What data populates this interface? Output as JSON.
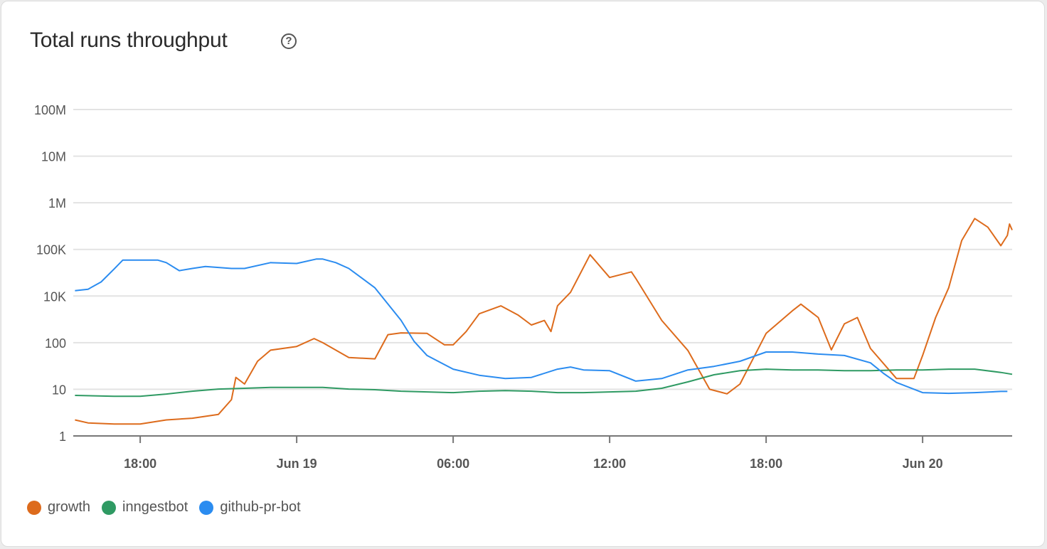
{
  "header": {
    "title": "Total runs throughput",
    "help_icon": "question-circle-icon"
  },
  "chart_data": {
    "type": "line",
    "title": "Total runs throughput",
    "xlabel": "",
    "ylabel": "",
    "y_scale": "log",
    "y_ticks": [
      {
        "value": 1,
        "label": "1"
      },
      {
        "value": 10,
        "label": "10"
      },
      {
        "value": 100,
        "label": "100"
      },
      {
        "value": 10000,
        "label": "10K"
      },
      {
        "value": 100000,
        "label": "100K"
      },
      {
        "value": 1000000,
        "label": "1M"
      },
      {
        "value": 10000000,
        "label": "10M"
      },
      {
        "value": 100000000,
        "label": "100M"
      }
    ],
    "x_range": [
      "Jun 18 15:26",
      "Jun 20 03:26"
    ],
    "x_ticks": [
      {
        "value": "Jun 18 18:00",
        "label": "18:00"
      },
      {
        "value": "Jun 19 00:00",
        "label": "Jun 19"
      },
      {
        "value": "Jun 19 06:00",
        "label": "06:00"
      },
      {
        "value": "Jun 19 12:00",
        "label": "12:00"
      },
      {
        "value": "Jun 19 18:00",
        "label": "18:00"
      },
      {
        "value": "Jun 20 00:00",
        "label": "Jun 20"
      }
    ],
    "grid": true,
    "legend_position": "bottom-left",
    "series": [
      {
        "name": "growth",
        "color": "#dd6b1c",
        "points": [
          [
            "Jun 18 15:30",
            2.2
          ],
          [
            "Jun 18 16:00",
            1.9
          ],
          [
            "Jun 18 17:00",
            1.8
          ],
          [
            "Jun 18 18:00",
            1.8
          ],
          [
            "Jun 18 19:00",
            2.2
          ],
          [
            "Jun 18 20:00",
            2.4
          ],
          [
            "Jun 18 21:00",
            2.9
          ],
          [
            "Jun 18 21:30",
            6
          ],
          [
            "Jun 18 21:40",
            18
          ],
          [
            "Jun 18 22:00",
            13
          ],
          [
            "Jun 18 22:30",
            40
          ],
          [
            "Jun 18 23:00",
            69
          ],
          [
            "Jun 19 00:00",
            83
          ],
          [
            "Jun 19 00:40",
            150
          ],
          [
            "Jun 19 01:00",
            100
          ],
          [
            "Jun 19 02:00",
            48
          ],
          [
            "Jun 19 03:00",
            45
          ],
          [
            "Jun 19 03:30",
            220
          ],
          [
            "Jun 19 04:00",
            263
          ],
          [
            "Jun 19 05:00",
            250
          ],
          [
            "Jun 19 05:40",
            90
          ],
          [
            "Jun 19 06:00",
            90
          ],
          [
            "Jun 19 06:30",
            300
          ],
          [
            "Jun 19 07:00",
            1740
          ],
          [
            "Jun 19 07:50",
            3800
          ],
          [
            "Jun 19 08:30",
            1500
          ],
          [
            "Jun 19 09:00",
            575
          ],
          [
            "Jun 19 09:30",
            900
          ],
          [
            "Jun 19 09:45",
            300
          ],
          [
            "Jun 19 10:00",
            3800
          ],
          [
            "Jun 19 10:30",
            12000
          ],
          [
            "Jun 19 11:15",
            77000
          ],
          [
            "Jun 19 12:00",
            25000
          ],
          [
            "Jun 19 12:50",
            33000
          ],
          [
            "Jun 19 13:00",
            24000
          ],
          [
            "Jun 19 14:00",
            900
          ],
          [
            "Jun 19 15:00",
            68
          ],
          [
            "Jun 19 15:50",
            10
          ],
          [
            "Jun 19 16:30",
            8
          ],
          [
            "Jun 19 17:00",
            13
          ],
          [
            "Jun 19 18:00",
            250
          ],
          [
            "Jun 19 19:00",
            2300
          ],
          [
            "Jun 19 19:20",
            4500
          ],
          [
            "Jun 19 20:00",
            1200
          ],
          [
            "Jun 19 20:30",
            70
          ],
          [
            "Jun 19 21:00",
            640
          ],
          [
            "Jun 19 21:30",
            1200
          ],
          [
            "Jun 19 22:00",
            75
          ],
          [
            "Jun 19 23:00",
            17
          ],
          [
            "Jun 19 23:40",
            17
          ],
          [
            "Jun 20 00:00",
            53
          ],
          [
            "Jun 20 00:30",
            1200
          ],
          [
            "Jun 20 01:00",
            15000
          ],
          [
            "Jun 20 01:30",
            155000
          ],
          [
            "Jun 20 02:00",
            460000
          ],
          [
            "Jun 20 02:30",
            300000
          ],
          [
            "Jun 20 03:00",
            120000
          ],
          [
            "Jun 20 03:15",
            200000
          ],
          [
            "Jun 20 03:20",
            350000
          ],
          [
            "Jun 20 03:26",
            260000
          ]
        ]
      },
      {
        "name": "inngestbot",
        "color": "#2f9a63",
        "points": [
          [
            "Jun 18 15:30",
            7.4
          ],
          [
            "Jun 18 17:00",
            7.1
          ],
          [
            "Jun 18 18:00",
            7.1
          ],
          [
            "Jun 18 19:00",
            7.9
          ],
          [
            "Jun 18 20:00",
            9.1
          ],
          [
            "Jun 18 21:00",
            10.1
          ],
          [
            "Jun 18 22:00",
            10.5
          ],
          [
            "Jun 18 23:00",
            11
          ],
          [
            "Jun 19 00:00",
            11
          ],
          [
            "Jun 19 01:00",
            11
          ],
          [
            "Jun 19 02:00",
            10.1
          ],
          [
            "Jun 19 03:00",
            9.8
          ],
          [
            "Jun 19 04:00",
            9.1
          ],
          [
            "Jun 19 05:00",
            8.8
          ],
          [
            "Jun 19 06:00",
            8.5
          ],
          [
            "Jun 19 07:00",
            9.1
          ],
          [
            "Jun 19 08:00",
            9.4
          ],
          [
            "Jun 19 09:00",
            9.1
          ],
          [
            "Jun 19 10:00",
            8.5
          ],
          [
            "Jun 19 11:00",
            8.5
          ],
          [
            "Jun 19 12:00",
            8.8
          ],
          [
            "Jun 19 13:00",
            9.1
          ],
          [
            "Jun 19 14:00",
            10.5
          ],
          [
            "Jun 19 15:00",
            14.4
          ],
          [
            "Jun 19 16:00",
            20.5
          ],
          [
            "Jun 19 17:00",
            25
          ],
          [
            "Jun 19 18:00",
            27
          ],
          [
            "Jun 19 19:00",
            26
          ],
          [
            "Jun 19 20:00",
            26
          ],
          [
            "Jun 19 21:00",
            25
          ],
          [
            "Jun 19 22:00",
            25
          ],
          [
            "Jun 19 23:00",
            26
          ],
          [
            "Jun 20 00:00",
            26
          ],
          [
            "Jun 20 01:00",
            27
          ],
          [
            "Jun 20 02:00",
            27
          ],
          [
            "Jun 20 03:00",
            23
          ],
          [
            "Jun 20 03:26",
            21
          ]
        ]
      },
      {
        "name": "github-pr-bot",
        "color": "#2b8cf0",
        "points": [
          [
            "Jun 18 15:30",
            13000
          ],
          [
            "Jun 18 16:00",
            14000
          ],
          [
            "Jun 18 16:30",
            20000
          ],
          [
            "Jun 18 17:00",
            38000
          ],
          [
            "Jun 18 17:20",
            59000
          ],
          [
            "Jun 18 18:00",
            59000
          ],
          [
            "Jun 18 18:40",
            59000
          ],
          [
            "Jun 18 19:00",
            52000
          ],
          [
            "Jun 18 19:30",
            35000
          ],
          [
            "Jun 18 20:00",
            39000
          ],
          [
            "Jun 18 20:30",
            43000
          ],
          [
            "Jun 18 21:00",
            41000
          ],
          [
            "Jun 18 21:30",
            39000
          ],
          [
            "Jun 18 22:00",
            39000
          ],
          [
            "Jun 18 23:00",
            52000
          ],
          [
            "Jun 19 00:00",
            50000
          ],
          [
            "Jun 19 00:45",
            62000
          ],
          [
            "Jun 19 01:00",
            62000
          ],
          [
            "Jun 19 01:30",
            52000
          ],
          [
            "Jun 19 02:00",
            39000
          ],
          [
            "Jun 19 03:00",
            15000
          ],
          [
            "Jun 19 04:00",
            910
          ],
          [
            "Jun 19 04:30",
            115
          ],
          [
            "Jun 19 05:00",
            53
          ],
          [
            "Jun 19 06:00",
            27
          ],
          [
            "Jun 19 07:00",
            20
          ],
          [
            "Jun 19 08:00",
            17
          ],
          [
            "Jun 19 09:00",
            18
          ],
          [
            "Jun 19 10:00",
            27
          ],
          [
            "Jun 19 10:30",
            30
          ],
          [
            "Jun 19 11:00",
            26
          ],
          [
            "Jun 19 12:00",
            25
          ],
          [
            "Jun 19 13:00",
            15
          ],
          [
            "Jun 19 14:00",
            17
          ],
          [
            "Jun 19 15:00",
            26
          ],
          [
            "Jun 19 16:00",
            31
          ],
          [
            "Jun 19 17:00",
            40
          ],
          [
            "Jun 19 18:00",
            63
          ],
          [
            "Jun 19 19:00",
            63
          ],
          [
            "Jun 19 20:00",
            57
          ],
          [
            "Jun 19 21:00",
            53
          ],
          [
            "Jun 19 22:00",
            37
          ],
          [
            "Jun 19 22:30",
            22
          ],
          [
            "Jun 19 23:00",
            14
          ],
          [
            "Jun 20 00:00",
            8.5
          ],
          [
            "Jun 20 01:00",
            8.2
          ],
          [
            "Jun 20 02:00",
            8.5
          ],
          [
            "Jun 20 03:00",
            9
          ],
          [
            "Jun 20 03:15",
            9
          ]
        ]
      }
    ]
  },
  "legend": [
    {
      "label": "growth",
      "color": "#dd6b1c"
    },
    {
      "label": "inngestbot",
      "color": "#2f9a63"
    },
    {
      "label": "github-pr-bot",
      "color": "#2b8cf0"
    }
  ]
}
